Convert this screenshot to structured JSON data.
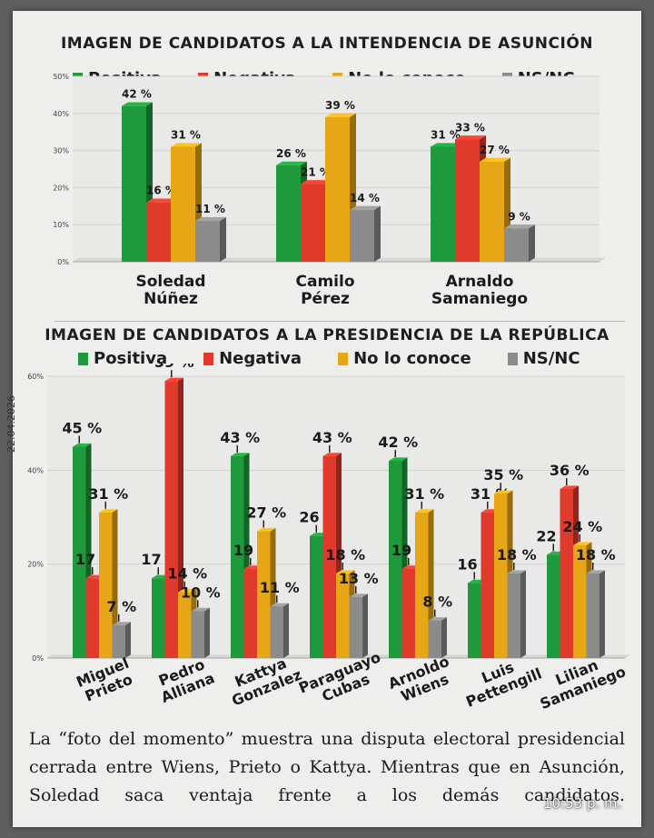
{
  "colors": {
    "positiva": "#1e9a3c",
    "negativa": "#e03a2c",
    "no_lo_conoce": "#e6a616",
    "nsnc": "#8b8b8b"
  },
  "date_stamp": "22.04.2026",
  "time_stamp": "10:53 p. m.",
  "caption": {
    "lines": [
      "La “foto del momento” muestra una disputa electoral presidencial",
      "cerrada entre Wiens, Prieto o Kattya. Mientras que en Asunción,",
      "Soledad saca ventaja frente a los demás candidatos."
    ]
  },
  "chart_data": [
    {
      "type": "bar",
      "title": "IMAGEN DE CANDIDATOS A LA INTENDENCIA DE ASUNCIÓN",
      "legend": [
        "Positiva",
        "Negativa",
        "No lo conoce",
        "NS/NC"
      ],
      "categories": [
        [
          "Soledad",
          "Núñez"
        ],
        [
          "Camilo",
          "Pérez"
        ],
        [
          "Arnaldo",
          "Samaniego"
        ]
      ],
      "yticks": [
        "0%",
        "10%",
        "20%",
        "30%",
        "40%",
        "50%"
      ],
      "ylim": [
        0,
        50
      ],
      "value_suffix": " %",
      "series": [
        {
          "name": "Positiva",
          "values": [
            42,
            26,
            31
          ]
        },
        {
          "name": "Negativa",
          "values": [
            16,
            21,
            33
          ]
        },
        {
          "name": "No lo conoce",
          "values": [
            31,
            39,
            27
          ]
        },
        {
          "name": "NS/NC",
          "values": [
            11,
            14,
            9
          ]
        }
      ]
    },
    {
      "type": "bar",
      "title": "IMAGEN DE CANDIDATOS A LA PRESIDENCIA DE LA REPÚBLICA",
      "legend": [
        "Positiva",
        "Negativa",
        "No lo conoce",
        "NS/NC"
      ],
      "categories": [
        [
          "Miguel",
          "Prieto"
        ],
        [
          "Pedro",
          "Alliana"
        ],
        [
          "Kattya",
          "Gonzalez"
        ],
        [
          "Paraguayo",
          "Cubas"
        ],
        [
          "Arnoldo",
          "Wiens"
        ],
        [
          "Luis",
          "Pettengill"
        ],
        [
          "Lilian",
          "Samaniego"
        ]
      ],
      "yticks": [
        "0%",
        "20%",
        "40%",
        "60%"
      ],
      "ylim": [
        0,
        60
      ],
      "value_suffix": " %",
      "series": [
        {
          "name": "Positiva",
          "values": [
            45,
            17,
            43,
            26,
            42,
            16,
            22
          ]
        },
        {
          "name": "Negativa",
          "values": [
            17,
            59,
            19,
            43,
            19,
            31,
            36
          ]
        },
        {
          "name": "No lo conoce",
          "values": [
            31,
            14,
            27,
            18,
            31,
            35,
            24
          ]
        },
        {
          "name": "NS/NC",
          "values": [
            7,
            10,
            11,
            13,
            8,
            18,
            18
          ]
        }
      ]
    }
  ]
}
